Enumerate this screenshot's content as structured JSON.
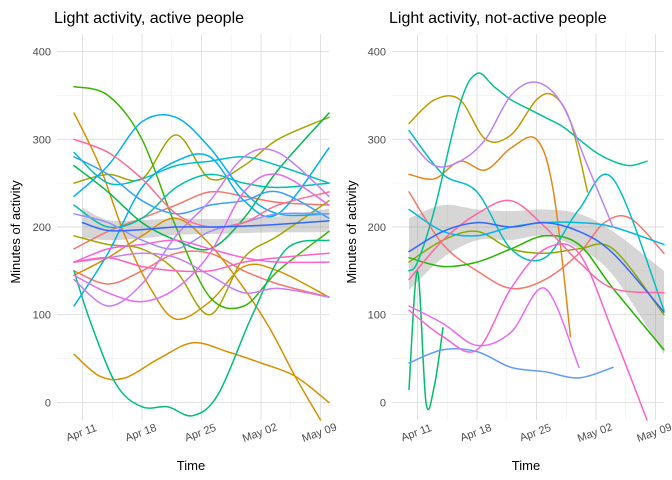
{
  "chart_data": [
    {
      "type": "line",
      "title": "Light activity, active people",
      "xlabel": "Time",
      "ylabel": "Minutes of activity",
      "xlim": [
        "2021-04-08",
        "2021-05-10"
      ],
      "ylim": [
        -20,
        420
      ],
      "y_ticks": [
        "0",
        "100",
        "200",
        "300",
        "400"
      ],
      "x_ticks": [
        {
          "date": "2021-04-11",
          "label": "Apr 11"
        },
        {
          "date": "2021-04-18",
          "label": "Apr 18"
        },
        {
          "date": "2021-04-25",
          "label": "Apr 25"
        },
        {
          "date": "2021-05-02",
          "label": "May 02"
        },
        {
          "date": "2021-05-09",
          "label": "May 09"
        }
      ],
      "grid": true,
      "smooth": {
        "color": "#3366FF",
        "x": [
          "2021-04-11",
          "2021-04-14",
          "2021-04-18",
          "2021-04-22",
          "2021-04-26",
          "2021-04-30",
          "2021-05-04",
          "2021-05-10"
        ],
        "y": [
          205,
          196,
          197,
          200,
          200,
          201,
          203,
          207
        ],
        "ymin": [
          188,
          185,
          187,
          191,
          192,
          193,
          194,
          194
        ],
        "ymax": [
          222,
          208,
          208,
          210,
          209,
          210,
          212,
          221
        ]
      },
      "series": [
        {
          "color": "#F8766D",
          "x": [
            "2021-04-10",
            "2021-04-14",
            "2021-04-18",
            "2021-04-22",
            "2021-04-26",
            "2021-04-30",
            "2021-05-04",
            "2021-05-10"
          ],
          "y": [
            175,
            195,
            210,
            225,
            240,
            235,
            228,
            225
          ]
        },
        {
          "color": "#F8766D",
          "x": [
            "2021-04-10",
            "2021-04-14",
            "2021-04-18",
            "2021-04-22",
            "2021-04-26",
            "2021-04-30",
            "2021-05-04",
            "2021-05-10"
          ],
          "y": [
            150,
            135,
            150,
            170,
            170,
            150,
            135,
            120
          ]
        },
        {
          "color": "#D89000",
          "x": [
            "2021-04-10",
            "2021-04-13",
            "2021-04-16",
            "2021-04-19",
            "2021-04-22",
            "2021-04-26",
            "2021-04-30",
            "2021-05-04",
            "2021-05-10"
          ],
          "y": [
            330,
            270,
            190,
            130,
            95,
            115,
            155,
            150,
            120
          ]
        },
        {
          "color": "#D89000",
          "x": [
            "2021-04-10",
            "2021-04-13",
            "2021-04-16",
            "2021-04-20",
            "2021-04-24",
            "2021-04-28",
            "2021-05-02",
            "2021-05-06",
            "2021-05-10"
          ],
          "y": [
            55,
            30,
            28,
            50,
            68,
            58,
            45,
            30,
            0
          ]
        },
        {
          "color": "#D89000",
          "x": [
            "2021-04-10",
            "2021-04-14",
            "2021-04-18",
            "2021-04-22",
            "2021-04-26",
            "2021-04-30",
            "2021-05-03",
            "2021-05-06",
            "2021-05-09"
          ],
          "y": [
            145,
            165,
            190,
            210,
            180,
            130,
            85,
            30,
            -20
          ]
        },
        {
          "color": "#A3A500",
          "x": [
            "2021-04-10",
            "2021-04-14",
            "2021-04-18",
            "2021-04-22",
            "2021-04-26",
            "2021-04-30",
            "2021-05-04",
            "2021-05-10"
          ],
          "y": [
            250,
            260,
            255,
            305,
            255,
            270,
            300,
            325
          ]
        },
        {
          "color": "#A3A500",
          "x": [
            "2021-04-10",
            "2021-04-14",
            "2021-04-18",
            "2021-04-22",
            "2021-04-26",
            "2021-04-30",
            "2021-05-04",
            "2021-05-10"
          ],
          "y": [
            190,
            180,
            175,
            150,
            100,
            165,
            190,
            230
          ]
        },
        {
          "color": "#39B600",
          "x": [
            "2021-04-10",
            "2021-04-14",
            "2021-04-18",
            "2021-04-22",
            "2021-04-26",
            "2021-04-30",
            "2021-05-04",
            "2021-05-10"
          ],
          "y": [
            360,
            350,
            300,
            200,
            120,
            110,
            150,
            195
          ]
        },
        {
          "color": "#00BB4E",
          "x": [
            "2021-04-10",
            "2021-04-14",
            "2021-04-18",
            "2021-04-22",
            "2021-04-26",
            "2021-04-30",
            "2021-05-04",
            "2021-05-10"
          ],
          "y": [
            270,
            240,
            205,
            185,
            175,
            210,
            265,
            330
          ]
        },
        {
          "color": "#00BF7D",
          "x": [
            "2021-04-10",
            "2021-04-12",
            "2021-04-15",
            "2021-04-18",
            "2021-04-21",
            "2021-04-24",
            "2021-04-27",
            "2021-05-01",
            "2021-05-05",
            "2021-05-10"
          ],
          "y": [
            150,
            90,
            20,
            -5,
            -5,
            -15,
            10,
            100,
            175,
            185
          ]
        },
        {
          "color": "#00C1A3",
          "x": [
            "2021-04-10",
            "2021-04-14",
            "2021-04-18",
            "2021-04-22",
            "2021-04-26",
            "2021-04-30",
            "2021-05-04",
            "2021-05-10"
          ],
          "y": [
            225,
            200,
            210,
            245,
            260,
            250,
            245,
            250
          ]
        },
        {
          "color": "#00BFC4",
          "x": [
            "2021-04-10",
            "2021-04-14",
            "2021-04-18",
            "2021-04-22",
            "2021-04-26",
            "2021-04-30",
            "2021-05-04",
            "2021-05-10"
          ],
          "y": [
            285,
            250,
            255,
            270,
            275,
            280,
            270,
            250
          ]
        },
        {
          "color": "#00B0F6",
          "x": [
            "2021-04-10",
            "2021-04-14",
            "2021-04-18",
            "2021-04-22",
            "2021-04-26",
            "2021-04-30",
            "2021-05-04",
            "2021-05-10"
          ],
          "y": [
            110,
            170,
            245,
            275,
            280,
            230,
            215,
            290
          ]
        },
        {
          "color": "#00B0F6",
          "x": [
            "2021-04-10",
            "2021-04-14",
            "2021-04-18",
            "2021-04-22",
            "2021-04-26",
            "2021-04-30",
            "2021-05-04",
            "2021-05-10"
          ],
          "y": [
            235,
            270,
            320,
            325,
            290,
            240,
            215,
            215
          ]
        },
        {
          "color": "#35A2FF",
          "x": [
            "2021-04-10",
            "2021-04-14",
            "2021-04-18",
            "2021-04-22",
            "2021-04-26",
            "2021-04-30",
            "2021-05-04",
            "2021-05-10"
          ],
          "y": [
            280,
            260,
            230,
            215,
            225,
            230,
            240,
            210
          ]
        },
        {
          "color": "#9590FF",
          "x": [
            "2021-04-10",
            "2021-04-14",
            "2021-04-18",
            "2021-04-22",
            "2021-04-26",
            "2021-04-30",
            "2021-05-04",
            "2021-05-10"
          ],
          "y": [
            215,
            205,
            185,
            175,
            195,
            205,
            215,
            215
          ]
        },
        {
          "color": "#C77CFF",
          "x": [
            "2021-04-10",
            "2021-04-14",
            "2021-04-18",
            "2021-04-22",
            "2021-04-26",
            "2021-04-30",
            "2021-05-04",
            "2021-05-10"
          ],
          "y": [
            160,
            165,
            170,
            165,
            145,
            125,
            130,
            120
          ]
        },
        {
          "color": "#C77CFF",
          "x": [
            "2021-04-10",
            "2021-04-14",
            "2021-04-18",
            "2021-04-22",
            "2021-04-26",
            "2021-04-30",
            "2021-05-04",
            "2021-05-10"
          ],
          "y": [
            140,
            110,
            135,
            190,
            230,
            280,
            285,
            235
          ]
        },
        {
          "color": "#E76BF3",
          "x": [
            "2021-04-10",
            "2021-04-14",
            "2021-04-18",
            "2021-04-22",
            "2021-04-26",
            "2021-04-30",
            "2021-05-04",
            "2021-05-10"
          ],
          "y": [
            145,
            125,
            115,
            130,
            170,
            240,
            260,
            225
          ]
        },
        {
          "color": "#FA62DB",
          "x": [
            "2021-04-10",
            "2021-04-14",
            "2021-04-18",
            "2021-04-22",
            "2021-04-26",
            "2021-04-30",
            "2021-05-04",
            "2021-05-10"
          ],
          "y": [
            160,
            175,
            180,
            185,
            175,
            165,
            160,
            160
          ]
        },
        {
          "color": "#FF62BC",
          "x": [
            "2021-04-10",
            "2021-04-14",
            "2021-04-18",
            "2021-04-22",
            "2021-04-26",
            "2021-04-30",
            "2021-05-04",
            "2021-05-10"
          ],
          "y": [
            160,
            165,
            155,
            150,
            150,
            160,
            165,
            170
          ]
        },
        {
          "color": "#FF6C91",
          "x": [
            "2021-04-10",
            "2021-04-14",
            "2021-04-18",
            "2021-04-22",
            "2021-04-26",
            "2021-04-30",
            "2021-05-04",
            "2021-05-10"
          ],
          "y": [
            300,
            285,
            255,
            215,
            200,
            205,
            225,
            240
          ]
        }
      ]
    },
    {
      "type": "line",
      "title": "Light activity, not-active people",
      "xlabel": "Time",
      "ylabel": "Minutes of activity",
      "xlim": [
        "2021-04-08",
        "2021-05-10"
      ],
      "ylim": [
        -20,
        420
      ],
      "y_ticks": [
        "0",
        "100",
        "200",
        "300",
        "400"
      ],
      "x_ticks": [
        {
          "date": "2021-04-11",
          "label": "Apr 11"
        },
        {
          "date": "2021-04-18",
          "label": "Apr 18"
        },
        {
          "date": "2021-04-25",
          "label": "Apr 25"
        },
        {
          "date": "2021-05-02",
          "label": "May 02"
        },
        {
          "date": "2021-05-09",
          "label": "May 09"
        }
      ],
      "grid": true,
      "smooth": {
        "color": "#3366FF",
        "x": [
          "2021-04-10",
          "2021-04-14",
          "2021-04-18",
          "2021-04-22",
          "2021-04-26",
          "2021-04-30",
          "2021-05-04",
          "2021-05-10"
        ],
        "y": [
          172,
          195,
          205,
          200,
          205,
          195,
          170,
          103
        ],
        "ymin": [
          128,
          165,
          185,
          185,
          190,
          175,
          145,
          55
        ],
        "ymax": [
          210,
          225,
          220,
          218,
          220,
          215,
          195,
          150
        ]
      },
      "series": [
        {
          "color": "#F8766D",
          "x": [
            "2021-04-10",
            "2021-04-14",
            "2021-04-18",
            "2021-04-22",
            "2021-04-26",
            "2021-04-30",
            "2021-05-03",
            "2021-05-06",
            "2021-05-10"
          ],
          "y": [
            240,
            180,
            150,
            130,
            140,
            170,
            205,
            210,
            170
          ]
        },
        {
          "color": "#E7861B",
          "x": [
            "2021-04-10",
            "2021-04-13",
            "2021-04-16",
            "2021-04-19",
            "2021-04-22",
            "2021-04-25",
            "2021-04-27",
            "2021-04-29"
          ],
          "y": [
            260,
            255,
            275,
            265,
            290,
            300,
            240,
            75
          ]
        },
        {
          "color": "#BE9C00",
          "x": [
            "2021-04-10",
            "2021-04-13",
            "2021-04-16",
            "2021-04-19",
            "2021-04-22",
            "2021-04-25",
            "2021-04-27",
            "2021-04-29",
            "2021-05-01"
          ],
          "y": [
            318,
            345,
            345,
            300,
            305,
            345,
            350,
            320,
            240
          ]
        },
        {
          "color": "#8CAB00",
          "x": [
            "2021-04-10",
            "2021-04-14",
            "2021-04-18",
            "2021-04-22",
            "2021-04-26",
            "2021-04-30",
            "2021-05-04",
            "2021-05-10"
          ],
          "y": [
            160,
            185,
            195,
            175,
            170,
            175,
            175,
            100
          ]
        },
        {
          "color": "#24B700",
          "x": [
            "2021-04-10",
            "2021-04-14",
            "2021-04-18",
            "2021-04-22",
            "2021-04-26",
            "2021-04-30",
            "2021-05-04",
            "2021-05-10"
          ],
          "y": [
            165,
            155,
            160,
            175,
            190,
            180,
            130,
            60
          ]
        },
        {
          "color": "#00BE67",
          "x": [
            "2021-04-10",
            "2021-04-11",
            "2021-04-12",
            "2021-04-13",
            "2021-04-14"
          ],
          "y": [
            15,
            150,
            0,
            20,
            85
          ]
        },
        {
          "color": "#00C19A",
          "x": [
            "2021-04-10",
            "2021-04-11",
            "2021-04-13",
            "2021-04-16",
            "2021-04-18",
            "2021-04-20",
            "2021-04-22",
            "2021-04-24",
            "2021-04-26",
            "2021-04-28",
            "2021-04-30",
            "2021-05-02",
            "2021-05-04",
            "2021-05-06",
            "2021-05-08"
          ],
          "y": [
            150,
            160,
            220,
            340,
            375,
            360,
            345,
            335,
            325,
            315,
            300,
            285,
            275,
            270,
            275
          ]
        },
        {
          "color": "#00BFC4",
          "x": [
            "2021-04-10",
            "2021-04-14",
            "2021-04-18",
            "2021-04-22",
            "2021-04-26",
            "2021-04-30",
            "2021-05-04",
            "2021-05-10"
          ],
          "y": [
            310,
            260,
            240,
            175,
            165,
            220,
            255,
            105
          ]
        },
        {
          "color": "#00B8E7",
          "x": [
            "2021-04-10",
            "2021-04-14",
            "2021-04-18",
            "2021-04-22",
            "2021-04-26",
            "2021-04-30",
            "2021-05-04",
            "2021-05-10"
          ],
          "y": [
            220,
            195,
            190,
            200,
            205,
            205,
            200,
            180
          ]
        },
        {
          "color": "#619CFF",
          "x": [
            "2021-04-10",
            "2021-04-14",
            "2021-04-18",
            "2021-04-22",
            "2021-04-26",
            "2021-04-30",
            "2021-05-04"
          ],
          "y": [
            45,
            60,
            58,
            40,
            35,
            28,
            40
          ]
        },
        {
          "color": "#B983FF",
          "x": [
            "2021-04-10",
            "2021-04-13",
            "2021-04-16",
            "2021-04-19",
            "2021-04-22",
            "2021-04-25",
            "2021-04-28",
            "2021-05-01",
            "2021-05-04"
          ],
          "y": [
            300,
            270,
            275,
            300,
            350,
            365,
            340,
            270,
            200
          ]
        },
        {
          "color": "#E76BF3",
          "x": [
            "2021-04-10",
            "2021-04-14",
            "2021-04-18",
            "2021-04-22",
            "2021-04-26",
            "2021-04-30"
          ],
          "y": [
            110,
            90,
            65,
            80,
            130,
            40
          ]
        },
        {
          "color": "#FD61D1",
          "x": [
            "2021-04-10",
            "2021-04-14",
            "2021-04-18",
            "2021-04-22",
            "2021-04-26",
            "2021-04-30",
            "2021-05-04",
            "2021-05-08"
          ],
          "y": [
            105,
            75,
            60,
            130,
            175,
            170,
            80,
            -20
          ]
        },
        {
          "color": "#FF67A4",
          "x": [
            "2021-04-10",
            "2021-04-14",
            "2021-04-18",
            "2021-04-22",
            "2021-04-26",
            "2021-04-30",
            "2021-05-04",
            "2021-05-10"
          ],
          "y": [
            140,
            185,
            215,
            230,
            200,
            160,
            130,
            125
          ]
        }
      ]
    }
  ]
}
